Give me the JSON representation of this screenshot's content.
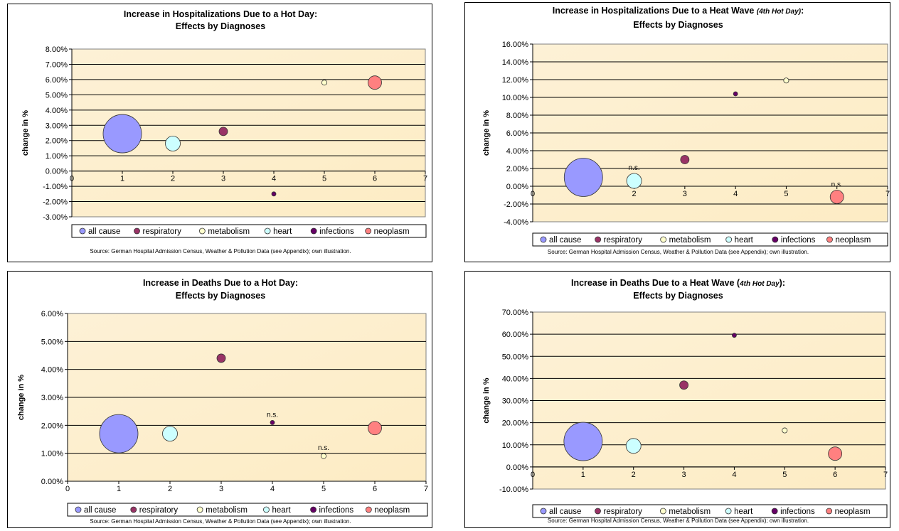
{
  "legend_labels": [
    "all cause",
    "respiratory",
    "metabolism",
    "heart",
    "infections",
    "neoplasm"
  ],
  "colors": {
    "all cause": "#9999ff",
    "respiratory": "#993366",
    "metabolism": "#ffffcc",
    "heart": "#ccffff",
    "infections": "#660066",
    "neoplasm": "#ff8080",
    "plot_background": "#fdecc4"
  },
  "source_note": "Source: German Hospital Admission Census, Weather & Pollution Data (see Appendix); own illustration.",
  "chart_data": [
    {
      "type": "scatter",
      "title_line1": "Increase in Hospitalizations Due to a Hot Day:",
      "title_italic": "",
      "title_tail": "",
      "title_line2": "Effects by Diagnoses",
      "xlabel": "",
      "ylabel": "change in %",
      "xlim": [
        0,
        7
      ],
      "ylim": [
        -3,
        8
      ],
      "ystep": 1,
      "ytick_decimals": 2,
      "x_ticks": [
        "0",
        "1",
        "2",
        "3",
        "4",
        "5",
        "6",
        "7"
      ],
      "grid": true,
      "legend_position": "bottom",
      "series": [
        {
          "name": "all cause",
          "x": 1,
          "y": 2.45,
          "note": ""
        },
        {
          "name": "respiratory",
          "x": 3,
          "y": 2.6,
          "note": ""
        },
        {
          "name": "metabolism",
          "x": 5,
          "y": 5.8,
          "note": ""
        },
        {
          "name": "heart",
          "x": 2,
          "y": 1.8,
          "note": ""
        },
        {
          "name": "infections",
          "x": 4,
          "y": -1.5,
          "note": ""
        },
        {
          "name": "neoplasm",
          "x": 6,
          "y": 5.8,
          "note": ""
        }
      ]
    },
    {
      "type": "scatter",
      "title_line1": "Increase in Hospitalizations Due to a Heat Wave ",
      "title_italic": "(4th Hot Day)",
      "title_tail": ":",
      "title_line2": "Effects by Diagnoses",
      "xlabel": "",
      "ylabel": "change in %",
      "xlim": [
        0,
        7
      ],
      "ylim": [
        -4,
        16
      ],
      "ystep": 2,
      "ytick_decimals": 2,
      "x_ticks": [
        "0",
        "1",
        "2",
        "3",
        "4",
        "5",
        "6",
        "7"
      ],
      "grid": true,
      "legend_position": "bottom",
      "series": [
        {
          "name": "all cause",
          "x": 1,
          "y": 1.0,
          "note": ""
        },
        {
          "name": "respiratory",
          "x": 3,
          "y": 3.0,
          "note": ""
        },
        {
          "name": "metabolism",
          "x": 5,
          "y": 11.9,
          "note": ""
        },
        {
          "name": "heart",
          "x": 2,
          "y": 0.6,
          "note": "n.s."
        },
        {
          "name": "infections",
          "x": 4,
          "y": 10.4,
          "note": ""
        },
        {
          "name": "neoplasm",
          "x": 6,
          "y": -1.2,
          "note": "n.s."
        }
      ]
    },
    {
      "type": "scatter",
      "title_line1": "Increase in Deaths Due to a Hot Day:",
      "title_italic": "",
      "title_tail": "",
      "title_line2": "Effects by Diagnoses",
      "xlabel": "",
      "ylabel": "change in %",
      "xlim": [
        0,
        7
      ],
      "ylim": [
        0,
        6
      ],
      "ystep": 1,
      "ytick_decimals": 2,
      "x_ticks": [
        "0",
        "1",
        "2",
        "3",
        "4",
        "5",
        "6",
        "7"
      ],
      "grid": true,
      "legend_position": "bottom",
      "series": [
        {
          "name": "all cause",
          "x": 1,
          "y": 1.7,
          "note": ""
        },
        {
          "name": "respiratory",
          "x": 3,
          "y": 4.4,
          "note": ""
        },
        {
          "name": "metabolism",
          "x": 5,
          "y": 0.9,
          "note": "n.s."
        },
        {
          "name": "heart",
          "x": 2,
          "y": 1.7,
          "note": ""
        },
        {
          "name": "infections",
          "x": 4,
          "y": 2.1,
          "note": "n.s."
        },
        {
          "name": "neoplasm",
          "x": 6,
          "y": 1.9,
          "note": ""
        }
      ]
    },
    {
      "type": "scatter",
      "title_line1": "Increase in Deaths Due to a Heat Wave (",
      "title_italic": "4th Hot Day",
      "title_tail": "):",
      "title_line2": "Effects by Diagnoses",
      "xlabel": "",
      "ylabel": "change in %",
      "xlim": [
        0,
        7
      ],
      "ylim": [
        -10,
        70
      ],
      "ystep": 10,
      "ytick_decimals": 2,
      "x_ticks": [
        "0",
        "1",
        "2",
        "3",
        "4",
        "5",
        "6",
        "7"
      ],
      "grid": true,
      "legend_position": "bottom",
      "series": [
        {
          "name": "all cause",
          "x": 1,
          "y": 11.5,
          "note": ""
        },
        {
          "name": "respiratory",
          "x": 3,
          "y": 37.0,
          "note": ""
        },
        {
          "name": "metabolism",
          "x": 5,
          "y": 16.5,
          "note": ""
        },
        {
          "name": "heart",
          "x": 2,
          "y": 9.5,
          "note": ""
        },
        {
          "name": "infections",
          "x": 4,
          "y": 59.5,
          "note": ""
        },
        {
          "name": "neoplasm",
          "x": 6,
          "y": 6.0,
          "note": ""
        }
      ]
    }
  ]
}
